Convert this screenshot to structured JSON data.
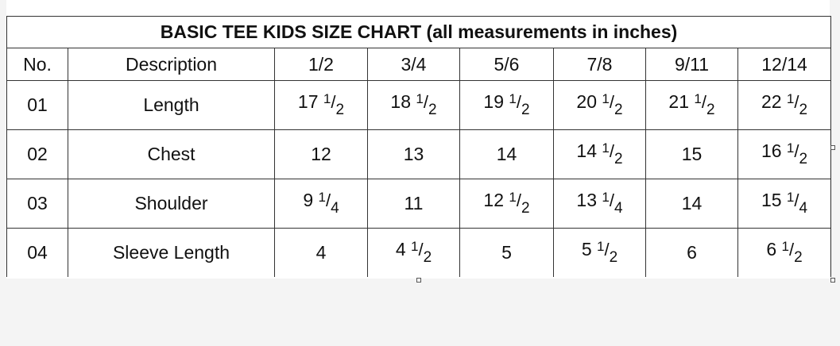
{
  "title": "BASIC TEE KIDS SIZE CHART (all measurements in inches)",
  "headers": [
    "No.",
    "Description",
    "1/2",
    "3/4",
    "5/6",
    "7/8",
    "9/11",
    "12/14"
  ],
  "rows": [
    {
      "no": "01",
      "description": "Length",
      "values": [
        "17 1/2",
        "18 1/2",
        "19 1/2",
        "20 1/2",
        "21 1/2",
        "22 1/2"
      ]
    },
    {
      "no": "02",
      "description": "Chest",
      "values": [
        "12",
        "13",
        "14",
        "14 1/2",
        "15",
        "16 1/2"
      ]
    },
    {
      "no": "03",
      "description": "Shoulder",
      "values": [
        "9 1/4",
        "11",
        "12 1/2",
        "13 1/4",
        "14",
        "15 1/4"
      ]
    },
    {
      "no": "04",
      "description": "Sleeve Length",
      "values": [
        "4",
        "4 1/2",
        "5",
        "5 1/2",
        "6",
        "6 1/2"
      ]
    }
  ]
}
